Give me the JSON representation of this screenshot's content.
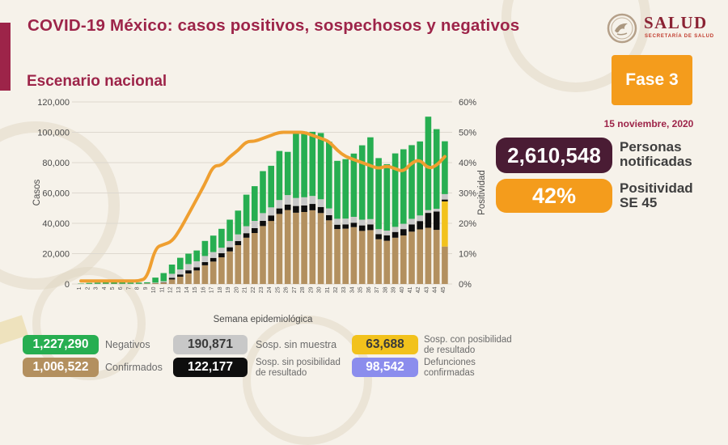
{
  "header": {
    "title": "COVID-19 México: casos positivos, sospechosos y negativos"
  },
  "logo": {
    "name": "SALUD",
    "subtitle": "SECRETARÍA DE SALUD"
  },
  "section_title": "Escenario nacional",
  "phase_panel": {
    "phase_label": "Fase 3",
    "date": "15 noviembre, 2020",
    "notified": {
      "value": "2,610,548",
      "label": "Personas\nnotificadas",
      "color": "#4a1c34"
    },
    "positivity": {
      "value": "42%",
      "label": "Positividad\nSE 45",
      "color": "#f49c1c"
    }
  },
  "chart_data": {
    "type": "bar",
    "subtype": "stacked-bars-with-line",
    "title": "Escenario nacional",
    "xlabel": "Semana epidemiológica",
    "ylabel_left": "Casos",
    "ylabel_right": "Positividad",
    "ylim_left": [
      0,
      120000
    ],
    "ylim_right": [
      0,
      60
    ],
    "y_ticks_left": [
      "0",
      "20,000",
      "40,000",
      "60,000",
      "80,000",
      "100,000",
      "120,000"
    ],
    "y_ticks_right": [
      "0%",
      "10%",
      "20%",
      "30%",
      "40%",
      "50%",
      "60%"
    ],
    "grid": true,
    "legend_position": "bottom",
    "categories": [
      "1",
      "2",
      "3",
      "4",
      "5",
      "6",
      "7",
      "8",
      "9",
      "10",
      "11",
      "12",
      "13",
      "14",
      "15",
      "16",
      "17",
      "18",
      "19",
      "20",
      "21",
      "22",
      "23",
      "24",
      "25",
      "26",
      "27",
      "28",
      "29",
      "30",
      "31",
      "32",
      "33",
      "34",
      "35",
      "36",
      "37",
      "38",
      "39",
      "40",
      "41",
      "42",
      "43",
      "44",
      "45"
    ],
    "series": [
      {
        "name": "Confirmados",
        "color": "#b3905f",
        "values": [
          100,
          100,
          150,
          200,
          250,
          200,
          150,
          150,
          300,
          500,
          900,
          3000,
          4800,
          6900,
          8900,
          12300,
          14800,
          17600,
          21500,
          25600,
          30500,
          33600,
          38200,
          41600,
          46200,
          48800,
          47000,
          47500,
          48600,
          46800,
          42000,
          36200,
          36500,
          37500,
          35000,
          35500,
          29500,
          28500,
          30500,
          32000,
          34500,
          36000,
          37100,
          35700,
          24700
        ]
      },
      {
        "name": "Sosp. con posibilidad de resultado",
        "color": "#f2c21c",
        "values": [
          0,
          0,
          0,
          0,
          0,
          0,
          0,
          0,
          0,
          0,
          0,
          0,
          0,
          0,
          0,
          0,
          0,
          0,
          0,
          0,
          0,
          0,
          0,
          0,
          0,
          0,
          0,
          0,
          0,
          0,
          0,
          0,
          0,
          0,
          0,
          0,
          0,
          0,
          0,
          0,
          0,
          0,
          0,
          0,
          29800
        ]
      },
      {
        "name": "Sosp. sin posibilidad de resultado",
        "color": "#0e0e0e",
        "values": [
          0,
          0,
          0,
          0,
          0,
          0,
          0,
          0,
          0,
          100,
          200,
          1100,
          1500,
          2100,
          2100,
          2100,
          2400,
          2700,
          2700,
          2700,
          3000,
          3200,
          3400,
          3600,
          3600,
          3600,
          4400,
          4300,
          4200,
          4000,
          3400,
          2900,
          2800,
          2900,
          3600,
          3800,
          3400,
          3500,
          3800,
          4200,
          4800,
          5500,
          9800,
          12100,
          1200
        ]
      },
      {
        "name": "Sosp. sin muestra",
        "color": "#c8c8c8",
        "values": [
          0,
          0,
          0,
          0,
          0,
          0,
          0,
          0,
          100,
          300,
          700,
          2600,
          3300,
          4100,
          4000,
          4100,
          3900,
          3600,
          4100,
          4400,
          4600,
          4800,
          5100,
          5300,
          5600,
          6200,
          5300,
          5400,
          5200,
          5000,
          4400,
          3900,
          3800,
          3900,
          3800,
          3500,
          3300,
          3200,
          3400,
          3500,
          3600,
          3700,
          1800,
          1800,
          3600
        ]
      },
      {
        "name": "Negativos",
        "color": "#27ae51",
        "values": [
          200,
          600,
          750,
          900,
          950,
          900,
          750,
          750,
          700,
          3300,
          5400,
          6100,
          7700,
          6900,
          7100,
          9900,
          10800,
          12500,
          14100,
          15700,
          20800,
          22900,
          27700,
          27400,
          32300,
          28500,
          44200,
          43300,
          42300,
          43700,
          44000,
          38200,
          39200,
          41700,
          49000,
          53900,
          46800,
          43800,
          48400,
          49100,
          48600,
          48800,
          61600,
          52500,
          34800
        ]
      }
    ],
    "line_series": {
      "name": "Positividad",
      "color": "#ef9f30",
      "axis": "right",
      "values": [
        1,
        1,
        1,
        1,
        1,
        1,
        1,
        1,
        2,
        12,
        13,
        14,
        18,
        23,
        28,
        33,
        39,
        39,
        42,
        44,
        47,
        47,
        48,
        49,
        50,
        50,
        50,
        50,
        49,
        48,
        47,
        44,
        42,
        41,
        40,
        39,
        38,
        39,
        38,
        37,
        40,
        41,
        38,
        39,
        42
      ]
    }
  },
  "legend": {
    "items": [
      {
        "value": "1,227,290",
        "label": "Negativos",
        "color": "#27ae51"
      },
      {
        "value": "190,871",
        "label": "Sosp. sin muestra",
        "color": "#c8c8c8"
      },
      {
        "value": "63,688",
        "label": "Sosp. con posibilidad\nde resultado",
        "color": "#f2c21c"
      },
      {
        "value": "1,006,522",
        "label": "Confirmados",
        "color": "#b3905f"
      },
      {
        "value": "122,177",
        "label": "Sosp. sin posibilidad\nde resultado",
        "color": "#0e0e0e"
      },
      {
        "value": "98,542",
        "label": "Defunciones\nconfirmadas",
        "color": "#8b8ded"
      }
    ]
  }
}
